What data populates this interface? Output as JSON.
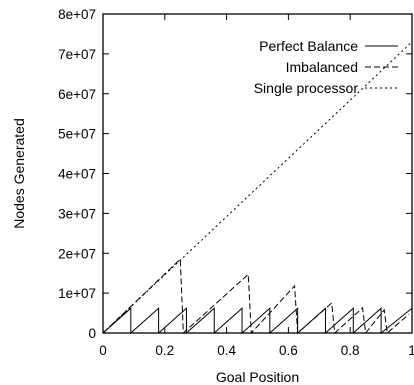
{
  "chart_data": {
    "type": "line",
    "xlabel": "Goal Position",
    "ylabel": "Nodes Generated",
    "xlim": [
      0,
      1
    ],
    "ylim": [
      0,
      80000000
    ],
    "x_ticks": [
      0,
      0.2,
      0.4,
      0.6,
      0.8,
      1
    ],
    "x_tick_labels": [
      "0",
      "0.2",
      "0.4",
      "0.6",
      "0.8",
      "1"
    ],
    "y_ticks": [
      0,
      10000000,
      20000000,
      30000000,
      40000000,
      50000000,
      60000000,
      70000000,
      80000000
    ],
    "y_tick_labels": [
      "0",
      "1e+07",
      "2e+07",
      "3e+07",
      "4e+07",
      "5e+07",
      "6e+07",
      "7e+07",
      "8e+07"
    ],
    "grid": false,
    "legend_position": "top-right",
    "series": [
      {
        "name": "Perfect Balance",
        "style": "solid",
        "points": [
          [
            0,
            0
          ],
          [
            0.09,
            6200000
          ],
          [
            0.09,
            0
          ],
          [
            0.18,
            6200000
          ],
          [
            0.18,
            0
          ],
          [
            0.27,
            6200000
          ],
          [
            0.27,
            0
          ],
          [
            0.36,
            6200000
          ],
          [
            0.36,
            0
          ],
          [
            0.45,
            6200000
          ],
          [
            0.45,
            0
          ],
          [
            0.54,
            6200000
          ],
          [
            0.54,
            0
          ],
          [
            0.63,
            6200000
          ],
          [
            0.63,
            0
          ],
          [
            0.72,
            6200000
          ],
          [
            0.72,
            0
          ],
          [
            0.81,
            6200000
          ],
          [
            0.81,
            0
          ],
          [
            0.9,
            6200000
          ],
          [
            0.9,
            0
          ],
          [
            1.0,
            6200000
          ]
        ]
      },
      {
        "name": "Imbalanced",
        "style": "dashed",
        "points": [
          [
            0,
            0
          ],
          [
            0.25,
            18500000
          ],
          [
            0.26,
            0
          ],
          [
            0.47,
            14700000
          ],
          [
            0.48,
            0
          ],
          [
            0.62,
            11800000
          ],
          [
            0.63,
            0
          ],
          [
            0.74,
            7500000
          ],
          [
            0.75,
            0
          ],
          [
            0.84,
            6300000
          ],
          [
            0.85,
            0
          ],
          [
            0.91,
            5800000
          ],
          [
            0.92,
            0
          ],
          [
            0.99,
            4700000
          ]
        ]
      },
      {
        "name": "Single processor",
        "style": "dotted",
        "points": [
          [
            0,
            0
          ],
          [
            1.0,
            73000000
          ]
        ]
      }
    ]
  }
}
